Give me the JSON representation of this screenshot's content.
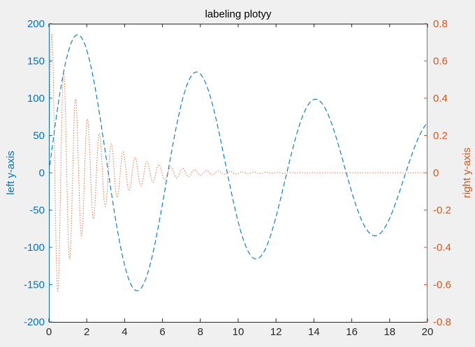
{
  "chart_data": {
    "type": "line",
    "title": "labeling plotyy",
    "xlabel": "",
    "ylabel_left": "left y-axis",
    "ylabel_right": "right y-axis",
    "xlim": [
      0,
      20
    ],
    "ylim_left": [
      -200,
      200
    ],
    "ylim_right": [
      -0.8,
      0.8
    ],
    "x_ticks": [
      0,
      2,
      4,
      6,
      8,
      10,
      12,
      14,
      16,
      18,
      20
    ],
    "y_ticks_left": [
      -200,
      -150,
      -100,
      -50,
      0,
      50,
      100,
      150,
      200
    ],
    "y_ticks_right": [
      -0.8,
      -0.6,
      -0.4,
      -0.2,
      0,
      0.2,
      0.4,
      0.6,
      0.8
    ],
    "grid": false,
    "series": [
      {
        "axis": "left",
        "style": "dashed",
        "color": "#0072bd",
        "formula": "200*exp(-0.05*x)*sin(x)",
        "x_range": [
          0,
          20
        ]
      },
      {
        "axis": "right",
        "style": "dotted",
        "color": "#d95319",
        "formula": "0.8*exp(-0.5*x)*sin(10*x)",
        "x_range": [
          0,
          20
        ]
      }
    ]
  },
  "colors": {
    "figure_bg": "#f0f0f0",
    "axes_bg": "#ffffff",
    "left_axis": "#0072bd",
    "right_axis": "#d95319",
    "text": "#000000"
  }
}
